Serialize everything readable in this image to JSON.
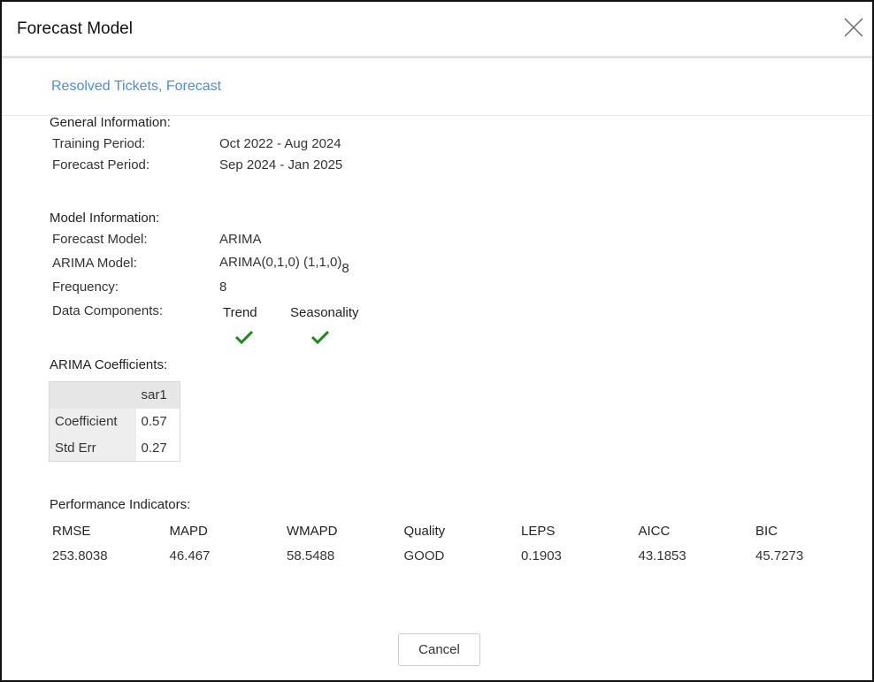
{
  "dialog": {
    "title": "Forecast Model",
    "subtitle": "Resolved Tickets, Forecast",
    "close_icon": "close-x-icon"
  },
  "general": {
    "heading": "General Information:",
    "training_label": "Training Period:",
    "training_value": "Oct 2022 - Aug 2024",
    "forecast_label": "Forecast Period:",
    "forecast_value": "Sep 2024 - Jan 2025"
  },
  "model": {
    "heading": "Model Information:",
    "model_label": "Forecast Model:",
    "model_value": "ARIMA",
    "arima_label": "ARIMA Model:",
    "arima_value": "ARIMA(0,1,0) (1,1,0)",
    "arima_sub": "8",
    "freq_label": "Frequency:",
    "freq_value": "8",
    "components_label": "Data Components:",
    "components": [
      {
        "name": "Trend",
        "enabled": true
      },
      {
        "name": "Seasonality",
        "enabled": true
      }
    ],
    "check_color": "#1a8a1a"
  },
  "coefficients": {
    "heading": "ARIMA Coefficients:",
    "column": "sar1",
    "rows": [
      {
        "label": "Coefficient",
        "value": "0.57"
      },
      {
        "label": "Std Err",
        "value": "0.27"
      }
    ]
  },
  "performance": {
    "heading": "Performance Indicators:",
    "metrics": [
      {
        "label": "RMSE",
        "value": "253.8038"
      },
      {
        "label": "MAPD",
        "value": "46.467"
      },
      {
        "label": "WMAPD",
        "value": "58.5488"
      },
      {
        "label": "Quality",
        "value": "GOOD"
      },
      {
        "label": "LEPS",
        "value": "0.1903"
      },
      {
        "label": "AICC",
        "value": "43.1853"
      },
      {
        "label": "BIC",
        "value": "45.7273"
      }
    ]
  },
  "footer": {
    "cancel_label": "Cancel"
  }
}
